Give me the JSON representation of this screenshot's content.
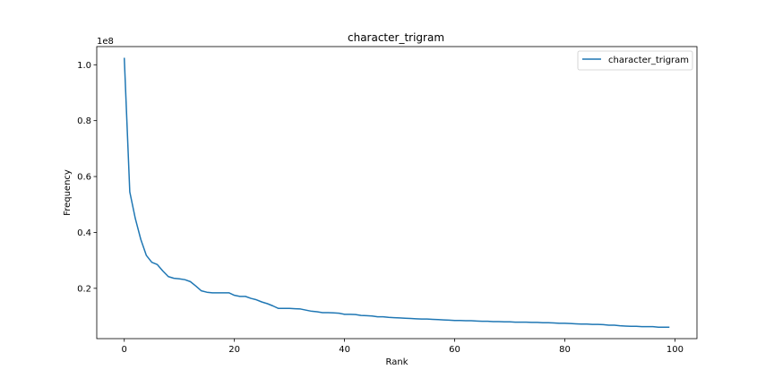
{
  "chart_data": {
    "type": "line",
    "title": "character_trigram",
    "xlabel": "Rank",
    "ylabel": "Frequency",
    "y_multiplier_label": "1e8",
    "xlim": [
      -5,
      104
    ],
    "ylim": [
      0.02,
      1.065
    ],
    "x_ticks": [
      0,
      20,
      40,
      60,
      80,
      100
    ],
    "y_ticks": [
      0.2,
      0.4,
      0.6,
      0.8,
      1.0
    ],
    "x_tick_labels": [
      "0",
      "20",
      "40",
      "60",
      "80",
      "100"
    ],
    "y_tick_labels": [
      "0.2",
      "0.4",
      "0.6",
      "0.8",
      "1.0"
    ],
    "legend": {
      "position": "top-right"
    },
    "grid": false,
    "series": [
      {
        "name": "character_trigram",
        "color": "#1f77b4",
        "x": [
          0,
          1,
          2,
          3,
          4,
          5,
          6,
          7,
          8,
          9,
          10,
          11,
          12,
          13,
          14,
          15,
          16,
          17,
          18,
          19,
          20,
          21,
          22,
          23,
          24,
          25,
          26,
          27,
          28,
          29,
          30,
          31,
          32,
          33,
          34,
          35,
          36,
          37,
          38,
          39,
          40,
          41,
          42,
          43,
          44,
          45,
          46,
          47,
          48,
          49,
          50,
          51,
          52,
          53,
          54,
          55,
          56,
          57,
          58,
          59,
          60,
          61,
          62,
          63,
          64,
          65,
          66,
          67,
          68,
          69,
          70,
          71,
          72,
          73,
          74,
          75,
          76,
          77,
          78,
          79,
          80,
          81,
          82,
          83,
          84,
          85,
          86,
          87,
          88,
          89,
          90,
          91,
          92,
          93,
          94,
          95,
          96,
          97,
          98,
          99
        ],
        "values": [
          1.025,
          0.545,
          0.45,
          0.375,
          0.318,
          0.293,
          0.285,
          0.262,
          0.242,
          0.236,
          0.234,
          0.231,
          0.224,
          0.208,
          0.191,
          0.186,
          0.184,
          0.184,
          0.184,
          0.184,
          0.175,
          0.171,
          0.171,
          0.164,
          0.159,
          0.151,
          0.145,
          0.137,
          0.128,
          0.128,
          0.128,
          0.127,
          0.126,
          0.122,
          0.118,
          0.116,
          0.113,
          0.113,
          0.112,
          0.111,
          0.107,
          0.107,
          0.106,
          0.103,
          0.102,
          0.101,
          0.098,
          0.098,
          0.096,
          0.095,
          0.094,
          0.093,
          0.092,
          0.091,
          0.09,
          0.09,
          0.089,
          0.088,
          0.087,
          0.086,
          0.085,
          0.085,
          0.084,
          0.084,
          0.083,
          0.082,
          0.082,
          0.081,
          0.081,
          0.08,
          0.08,
          0.079,
          0.079,
          0.079,
          0.078,
          0.078,
          0.077,
          0.077,
          0.076,
          0.075,
          0.075,
          0.074,
          0.073,
          0.072,
          0.072,
          0.071,
          0.071,
          0.07,
          0.068,
          0.068,
          0.066,
          0.065,
          0.064,
          0.064,
          0.063,
          0.063,
          0.063,
          0.061,
          0.061,
          0.061
        ]
      }
    ]
  }
}
